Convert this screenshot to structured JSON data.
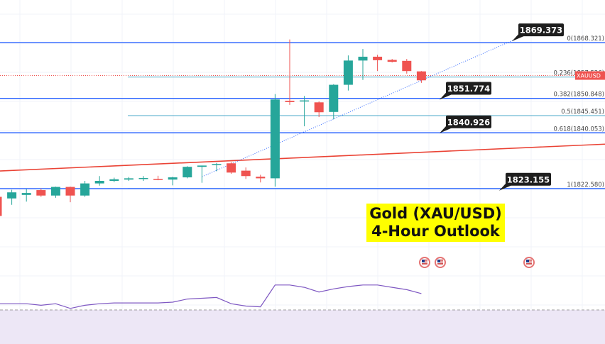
{
  "chart_data": {
    "type": "candlestick",
    "title_line1": "Gold (XAU/USD)",
    "title_line2": "4-Hour Outlook",
    "symbol_tag": "XAUUSD",
    "y_range": [
      1815,
      1875
    ],
    "candles": [
      {
        "o": 1820.0,
        "h": 1821.0,
        "l": 1812.0,
        "c": 1814.0
      },
      {
        "o": 1819.5,
        "h": 1822.2,
        "l": 1817.5,
        "c": 1821.4
      },
      {
        "o": 1820.6,
        "h": 1822.5,
        "l": 1818.5,
        "c": 1821.2
      },
      {
        "o": 1822.1,
        "h": 1822.6,
        "l": 1820.0,
        "c": 1820.4
      },
      {
        "o": 1820.4,
        "h": 1823.2,
        "l": 1819.7,
        "c": 1823.1
      },
      {
        "o": 1823.1,
        "h": 1823.2,
        "l": 1818.3,
        "c": 1820.4
      },
      {
        "o": 1820.4,
        "h": 1825.0,
        "l": 1820.0,
        "c": 1824.2
      },
      {
        "o": 1824.2,
        "h": 1826.5,
        "l": 1823.5,
        "c": 1825.0
      },
      {
        "o": 1825.0,
        "h": 1826.0,
        "l": 1824.6,
        "c": 1825.5
      },
      {
        "o": 1825.4,
        "h": 1826.2,
        "l": 1825.0,
        "c": 1825.8
      },
      {
        "o": 1825.8,
        "h": 1826.5,
        "l": 1825.0,
        "c": 1825.9
      },
      {
        "o": 1825.6,
        "h": 1826.6,
        "l": 1825.2,
        "c": 1825.4
      },
      {
        "o": 1825.4,
        "h": 1826.3,
        "l": 1823.6,
        "c": 1826.1
      },
      {
        "o": 1826.1,
        "h": 1829.6,
        "l": 1825.8,
        "c": 1829.4
      },
      {
        "o": 1829.4,
        "h": 1829.8,
        "l": 1824.4,
        "c": 1829.8
      },
      {
        "o": 1830.0,
        "h": 1830.6,
        "l": 1828.0,
        "c": 1830.3
      },
      {
        "o": 1830.5,
        "h": 1830.9,
        "l": 1827.2,
        "c": 1827.6
      },
      {
        "o": 1828.2,
        "h": 1829.2,
        "l": 1825.6,
        "c": 1826.5
      },
      {
        "o": 1826.3,
        "h": 1826.9,
        "l": 1824.5,
        "c": 1825.8
      },
      {
        "o": 1825.8,
        "h": 1852.2,
        "l": 1823.2,
        "c": 1850.5
      },
      {
        "o": 1850.1,
        "h": 1869.3,
        "l": 1848.8,
        "c": 1849.7
      },
      {
        "o": 1850.2,
        "h": 1851.6,
        "l": 1842.1,
        "c": 1850.2
      },
      {
        "o": 1849.6,
        "h": 1849.9,
        "l": 1845.0,
        "c": 1846.5
      },
      {
        "o": 1846.6,
        "h": 1855.3,
        "l": 1844.3,
        "c": 1855.1
      },
      {
        "o": 1855.1,
        "h": 1864.3,
        "l": 1853.3,
        "c": 1862.7
      },
      {
        "o": 1862.7,
        "h": 1866.3,
        "l": 1856.6,
        "c": 1863.9
      },
      {
        "o": 1863.9,
        "h": 1864.5,
        "l": 1859.4,
        "c": 1862.8
      },
      {
        "o": 1862.9,
        "h": 1863.2,
        "l": 1862.1,
        "c": 1862.3
      },
      {
        "o": 1862.6,
        "h": 1863.2,
        "l": 1858.6,
        "c": 1859.4
      },
      {
        "o": 1859.3,
        "h": 1859.4,
        "l": 1855.7,
        "c": 1856.5
      }
    ],
    "horizontal_lines": [
      1868.321,
      1850.848,
      1840.053,
      1822.58
    ],
    "fib_levels": [
      {
        "label": "0(1868.321)",
        "value": 1868.321
      },
      {
        "label": "0.236(1857.526)",
        "value": 1857.526
      },
      {
        "label": "0.382(1850.848)",
        "value": 1850.848
      },
      {
        "label": "0.5(1845.451)",
        "value": 1845.451
      },
      {
        "label": "0.618(1840.053)",
        "value": 1840.053
      },
      {
        "label": "1(1822.580)",
        "value": 1822.58
      }
    ],
    "price_callouts": [
      {
        "label": "1869.373",
        "value": 1872.3
      },
      {
        "label": "1851.774",
        "value": 1854.0
      },
      {
        "label": "1840.926",
        "value": 1843.5
      },
      {
        "label": "1823.155",
        "value": 1825.5
      }
    ],
    "trend_line_red": {
      "start": 1828.1,
      "end": 1836.5
    },
    "trend_line_dotted": {
      "start_index": 14,
      "start": 1826.3,
      "end": 1869.3
    },
    "current_price": 1858.0,
    "rsi": {
      "range": [
        0,
        100
      ],
      "reference_level": 30,
      "values": [
        38,
        38,
        38,
        36,
        38,
        32,
        36,
        38,
        39,
        39,
        39,
        39,
        40,
        44,
        45,
        46,
        38,
        35,
        34,
        62,
        62,
        59,
        53,
        57,
        60,
        62,
        62,
        59,
        56,
        51
      ]
    },
    "colors": {
      "bullish": "#26a69a",
      "bearish": "#ef5350",
      "h_line": "#2962ff",
      "fib_line": "#4aa8c8",
      "red_line": "#ea4335",
      "rsi_line": "#7e57c2",
      "rsi_fill": "#ede7f6",
      "callout_bg": "#1e1e1e",
      "title_bg": "#ffff00"
    },
    "event_icons": [
      "us-flag-icon",
      "us-flag-icon",
      "us-flag-icon"
    ]
  }
}
